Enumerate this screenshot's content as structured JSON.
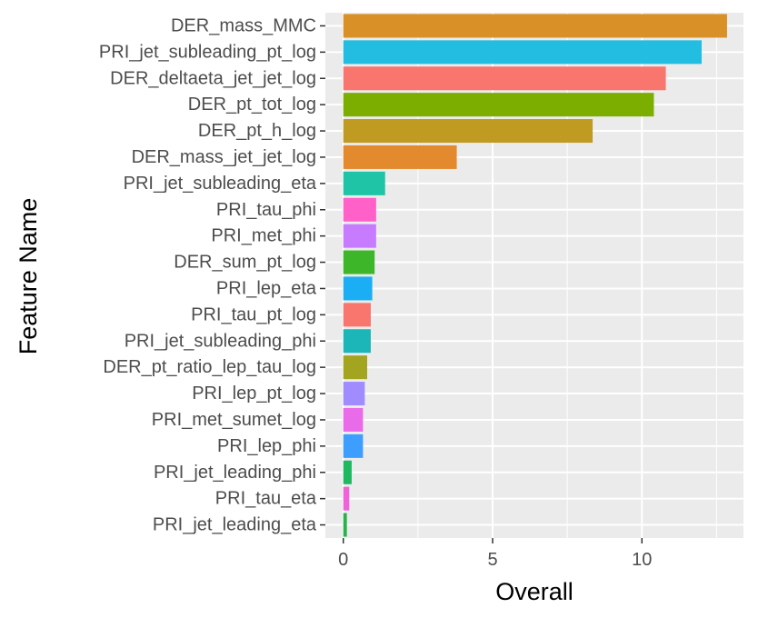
{
  "chart_data": {
    "type": "bar",
    "orientation": "horizontal",
    "xlabel": "Overall",
    "ylabel": "Feature Name",
    "xlim": [
      -0.6,
      13.4
    ],
    "x_ticks": [
      0,
      5,
      10
    ],
    "grid": true,
    "legend": "none",
    "panel_background": "#ebebeb",
    "grid_color": "#ffffff",
    "categories": [
      "DER_mass_MMC",
      "PRI_jet_subleading_pt_log",
      "DER_deltaeta_jet_jet_log",
      "DER_pt_tot_log",
      "DER_pt_h_log",
      "DER_mass_jet_jet_log",
      "PRI_jet_subleading_eta",
      "PRI_tau_phi",
      "PRI_met_phi",
      "DER_sum_pt_log",
      "PRI_lep_eta",
      "PRI_tau_pt_log",
      "PRI_jet_subleading_phi",
      "DER_pt_ratio_lep_tau_log",
      "PRI_lep_pt_log",
      "PRI_met_sumet_log",
      "PRI_lep_phi",
      "PRI_jet_leading_phi",
      "PRI_tau_eta",
      "PRI_jet_leading_eta"
    ],
    "values": [
      12.85,
      12.0,
      10.8,
      10.4,
      8.35,
      3.8,
      1.4,
      1.1,
      1.1,
      1.05,
      0.97,
      0.92,
      0.92,
      0.8,
      0.72,
      0.66,
      0.66,
      0.28,
      0.2,
      0.12
    ],
    "colors": [
      "#D89027",
      "#23BDE2",
      "#F8766D",
      "#7CAE00",
      "#C09B22",
      "#E38A2F",
      "#1FC3A6",
      "#FF61C9",
      "#C77CFF",
      "#3DB62A",
      "#1CAEF5",
      "#F8766D",
      "#1CB5B8",
      "#A3A521",
      "#A08CFF",
      "#EA6BE9",
      "#3E9EFF",
      "#1FB861",
      "#F162D8",
      "#27B34A"
    ]
  }
}
